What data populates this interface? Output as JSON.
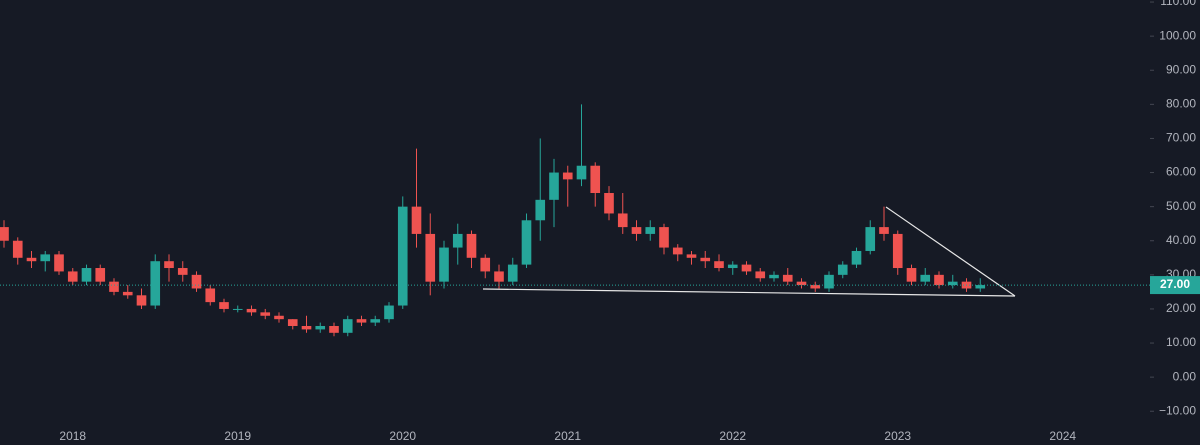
{
  "chart_data": {
    "type": "candlestick",
    "categories": [
      null,
      null,
      null,
      null,
      null,
      "2018",
      null,
      null,
      null,
      null,
      null,
      null,
      null,
      null,
      null,
      null,
      null,
      "2019",
      null,
      null,
      null,
      null,
      null,
      null,
      null,
      null,
      null,
      null,
      null,
      "2020",
      null,
      null,
      null,
      null,
      null,
      null,
      null,
      null,
      null,
      null,
      null,
      "2021",
      null,
      null,
      null,
      null,
      null,
      null,
      null,
      null,
      null,
      null,
      null,
      "2022",
      null,
      null,
      null,
      null,
      null,
      null,
      null,
      null,
      null,
      null,
      null,
      "2023",
      null,
      null,
      null,
      null,
      null,
      null,
      null,
      null,
      null,
      null,
      null,
      "2024"
    ],
    "open": [
      44,
      40,
      35,
      34,
      36,
      31,
      28,
      32,
      28,
      25,
      24,
      21,
      34,
      32,
      30,
      26,
      22,
      20,
      20,
      19,
      18,
      17,
      15,
      14,
      15,
      13,
      17,
      16,
      17,
      21,
      50,
      42,
      28,
      38,
      42,
      35,
      31,
      28,
      33,
      46,
      52,
      60,
      58,
      62,
      54,
      48,
      44,
      42,
      44,
      38,
      36,
      35,
      34,
      32,
      33,
      31,
      29,
      30,
      28,
      27,
      26,
      30,
      33,
      37,
      44,
      42,
      32,
      28,
      30,
      27,
      28,
      26,
      null,
      null,
      null,
      null,
      null,
      null
    ],
    "high": [
      46,
      41,
      37,
      37,
      37,
      32,
      33,
      33,
      29,
      27,
      26,
      36,
      36,
      34,
      31,
      27,
      23,
      21,
      21,
      20,
      19,
      17,
      18,
      16,
      16,
      18,
      18,
      18,
      22,
      53,
      67,
      48,
      40,
      45,
      43,
      36,
      33,
      35,
      48,
      70,
      64,
      62,
      80,
      63,
      56,
      54,
      46,
      46,
      45,
      39,
      37,
      37,
      36,
      34,
      34,
      32,
      31,
      32,
      29,
      28,
      31,
      34,
      38,
      46,
      50,
      43,
      33,
      32,
      31,
      30,
      29,
      29,
      null,
      null,
      null,
      null,
      null,
      null
    ],
    "low": [
      38,
      33,
      32,
      31,
      30,
      27,
      27,
      27,
      24,
      23,
      20,
      20,
      28,
      28,
      25,
      21,
      19,
      19,
      18,
      17,
      16,
      14,
      13,
      13,
      12,
      12,
      15,
      15,
      16,
      20,
      38,
      24,
      26,
      33,
      32,
      29,
      26,
      27,
      32,
      40,
      44,
      50,
      56,
      50,
      46,
      42,
      40,
      40,
      36,
      34,
      33,
      32,
      31,
      30,
      30,
      28,
      28,
      27,
      26,
      25,
      25,
      29,
      32,
      36,
      40,
      30,
      27,
      27,
      26,
      26,
      25,
      25,
      null,
      null,
      null,
      null,
      null,
      null
    ],
    "close": [
      40,
      35,
      34,
      36,
      31,
      28,
      32,
      28,
      25,
      24,
      21,
      34,
      32,
      30,
      26,
      22,
      20,
      20,
      19,
      18,
      17,
      15,
      14,
      15,
      13,
      17,
      16,
      17,
      21,
      50,
      42,
      28,
      38,
      42,
      35,
      31,
      28,
      33,
      46,
      52,
      60,
      58,
      62,
      54,
      48,
      44,
      42,
      44,
      38,
      36,
      35,
      34,
      32,
      33,
      31,
      29,
      30,
      28,
      27,
      26,
      30,
      33,
      37,
      44,
      42,
      32,
      28,
      30,
      27,
      28,
      26,
      27,
      null,
      null,
      null,
      null,
      null,
      null
    ],
    "up_color": "#26a69a",
    "down_color": "#ef5350",
    "ylim": [
      -19.9,
      110.6
    ],
    "yticks": [
      {
        "value": -10,
        "label": "−10.00"
      },
      {
        "value": 0,
        "label": "0.00"
      },
      {
        "value": 10,
        "label": "10.00"
      },
      {
        "value": 20,
        "label": "20.00"
      },
      {
        "value": 30,
        "label": "30.00"
      },
      {
        "value": 40,
        "label": "40.00"
      },
      {
        "value": 50,
        "label": "50.00"
      },
      {
        "value": 60,
        "label": "60.00"
      },
      {
        "value": 70,
        "label": "70.00"
      },
      {
        "value": 80,
        "label": "80.00"
      },
      {
        "value": 90,
        "label": "90.00"
      },
      {
        "value": 100,
        "label": "100.00"
      },
      {
        "value": 110,
        "label": "110.00"
      }
    ],
    "last_price": {
      "value": 27,
      "label": "27.00"
    },
    "grid": false
  }
}
